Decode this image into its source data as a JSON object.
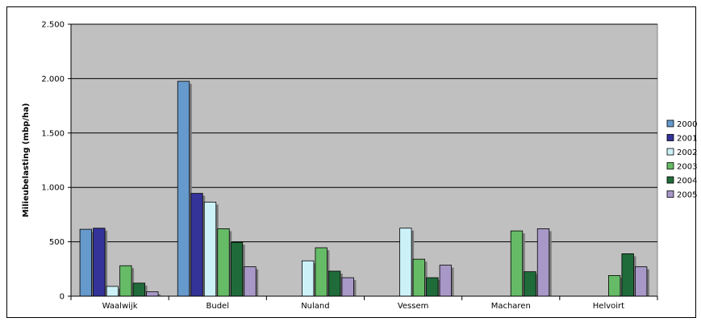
{
  "chart_data": {
    "type": "bar",
    "title": "",
    "xlabel": "",
    "ylabel": "Milieubelasting (mbp/ha)",
    "ylim": [
      0,
      2500
    ],
    "yticks": [
      0,
      500,
      1000,
      1500,
      2000,
      2500
    ],
    "ytick_labels": [
      "0",
      "500",
      "1.000",
      "1.500",
      "2.000",
      "2.500"
    ],
    "grid": "horizontal",
    "legend_position": "right",
    "plot_background": "#c0c0c0",
    "categories": [
      "Waalwijk",
      "Budel",
      "Nuland",
      "Vessem",
      "Macharen",
      "Helvoirt"
    ],
    "series": [
      {
        "name": "2000",
        "color": "#6699cc",
        "values": [
          615,
          1975,
          0,
          0,
          0,
          0
        ]
      },
      {
        "name": "2001",
        "color": "#333399",
        "values": [
          625,
          945,
          0,
          0,
          0,
          0
        ]
      },
      {
        "name": "2002",
        "color": "#ccf2f8",
        "values": [
          90,
          865,
          325,
          625,
          0,
          0
        ]
      },
      {
        "name": "2003",
        "color": "#66bb66",
        "values": [
          280,
          620,
          445,
          340,
          600,
          190
        ]
      },
      {
        "name": "2004",
        "color": "#1f6b3a",
        "values": [
          120,
          495,
          230,
          170,
          225,
          390
        ]
      },
      {
        "name": "2005",
        "color": "#a898c8",
        "values": [
          40,
          270,
          170,
          285,
          620,
          270
        ]
      }
    ]
  }
}
